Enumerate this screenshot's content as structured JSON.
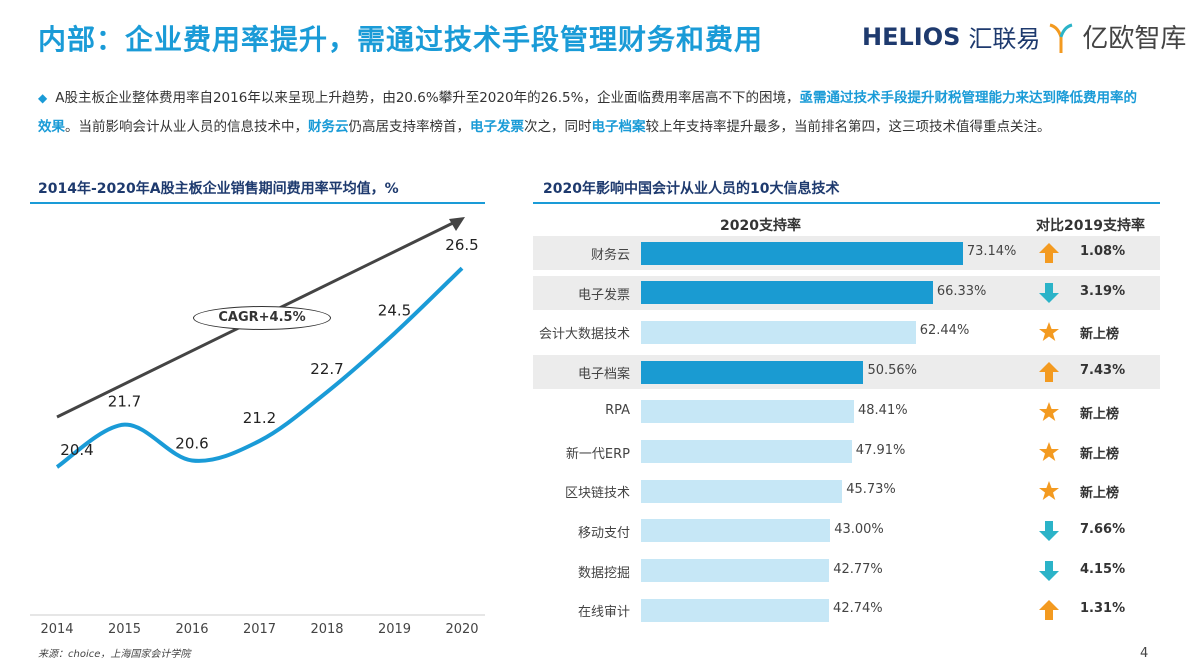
{
  "title": "内部：企业费用率提升，需通过技术手段管理财务和费用",
  "logos": {
    "helios": "HELIOS",
    "helios_cn": "汇联易",
    "yiou": "亿欧智库"
  },
  "summary": {
    "p1": "A股主板企业整体费用率自2016年以来呈现上升趋势，由20.6%攀升至2020年的26.5%，企业面临费用率居高不下的困境，",
    "h1": "亟需通过技术手段提升财税管理能力来达到降低费用率的效果",
    "p2": "。当前影响会计从业人员的信息技术中，",
    "h2": "财务云",
    "p3": "仍高居支持率榜首，",
    "h3": "电子发票",
    "p4": "次之，同时",
    "h4": "电子档案",
    "p5": "较上年支持率提升最多，当前排名第四，这三项技术值得重点关注。"
  },
  "colors": {
    "accent": "#1a9bd7",
    "bar_dark": "#1a9bd2",
    "bar_light": "#c6e7f6",
    "up": "#f39a20",
    "down": "#2bb3c8",
    "star": "#f39a20"
  },
  "chart_data": [
    {
      "type": "line",
      "title": "2014年-2020年A股主板企业销售期间费用率平均值，%",
      "x": [
        "2014",
        "2015",
        "2016",
        "2017",
        "2018",
        "2019",
        "2020"
      ],
      "values": [
        20.4,
        21.7,
        20.6,
        21.2,
        22.7,
        24.5,
        26.5
      ],
      "annotation": "CAGR+4.5%",
      "grid": false
    },
    {
      "type": "bar",
      "orientation": "horizontal",
      "title": "2020年影响中国会计从业人员的10大信息技术",
      "col1": "2020支持率",
      "col2": "对比2019支持率",
      "categories": [
        "财务云",
        "电子发票",
        "会计大数据技术",
        "电子档案",
        "RPA",
        "新一代ERP",
        "区块链技术",
        "移动支付",
        "数据挖掘",
        "在线审计"
      ],
      "values": [
        73.14,
        66.33,
        62.44,
        50.56,
        48.41,
        47.91,
        45.73,
        43.0,
        42.77,
        42.74
      ],
      "labels": [
        "73.14%",
        "66.33%",
        "62.44%",
        "50.56%",
        "48.41%",
        "47.91%",
        "45.73%",
        "43.00%",
        "42.77%",
        "42.74%"
      ],
      "highlighted": [
        true,
        true,
        false,
        true,
        false,
        false,
        false,
        false,
        false,
        false
      ],
      "change_icon": [
        "arrow-up",
        "arrow-down",
        "star",
        "arrow-up",
        "star",
        "star",
        "star",
        "arrow-down",
        "arrow-down",
        "arrow-up"
      ],
      "change": [
        "1.08%",
        "3.19%",
        "新上榜",
        "7.43%",
        "新上榜",
        "新上榜",
        "新上榜",
        "7.66%",
        "4.15%",
        "1.31%"
      ]
    }
  ],
  "source": "来源：choice，上海国家会计学院",
  "page": "4"
}
